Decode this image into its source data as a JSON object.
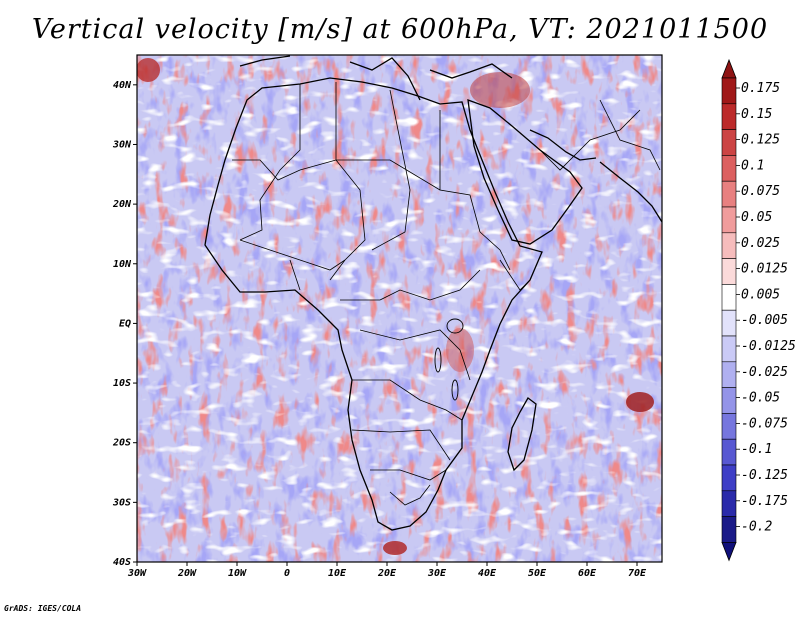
{
  "title": "Vertical velocity [m/s] at 600hPa, VT: 2021011500",
  "credit": "GrADS: IGES/COLA",
  "map": {
    "region": "Africa",
    "variable": "Vertical velocity",
    "units": "m/s",
    "level": "600hPa",
    "valid_time": "2021011500",
    "lon_range": [
      -30,
      75
    ],
    "lat_range": [
      -40,
      45
    ],
    "lat_ticks": [
      "40N",
      "30N",
      "20N",
      "10N",
      "EQ",
      "10S",
      "20S",
      "30S",
      "40S"
    ],
    "lon_ticks": [
      "30W",
      "20W",
      "10W",
      "0",
      "10E",
      "20E",
      "30E",
      "40E",
      "50E",
      "60E",
      "70E"
    ]
  },
  "colorbar": {
    "levels": [
      "0.175",
      "0.15",
      "0.125",
      "0.1",
      "0.075",
      "0.05",
      "0.025",
      "0.0125",
      "0.005",
      "-0.005",
      "-0.0125",
      "-0.025",
      "-0.05",
      "-0.075",
      "-0.1",
      "-0.125",
      "-0.175",
      "-0.2"
    ],
    "colors": [
      "#a01818",
      "#bc2a2a",
      "#cc4444",
      "#dc6060",
      "#e88080",
      "#f09c9c",
      "#f6bcbc",
      "#fbdada",
      "#ffffff",
      "#e2e2fb",
      "#cacaf6",
      "#b0b0f0",
      "#9494e8",
      "#7676de",
      "#5858d2",
      "#3e3ec6",
      "#2a2aaa",
      "#1a1a88"
    ],
    "top_arrow_color": "#8e1414",
    "bottom_arrow_color": "#10107a"
  },
  "colors": {
    "frame": "#000000",
    "coast": "#000000",
    "background": "#ffffff"
  }
}
